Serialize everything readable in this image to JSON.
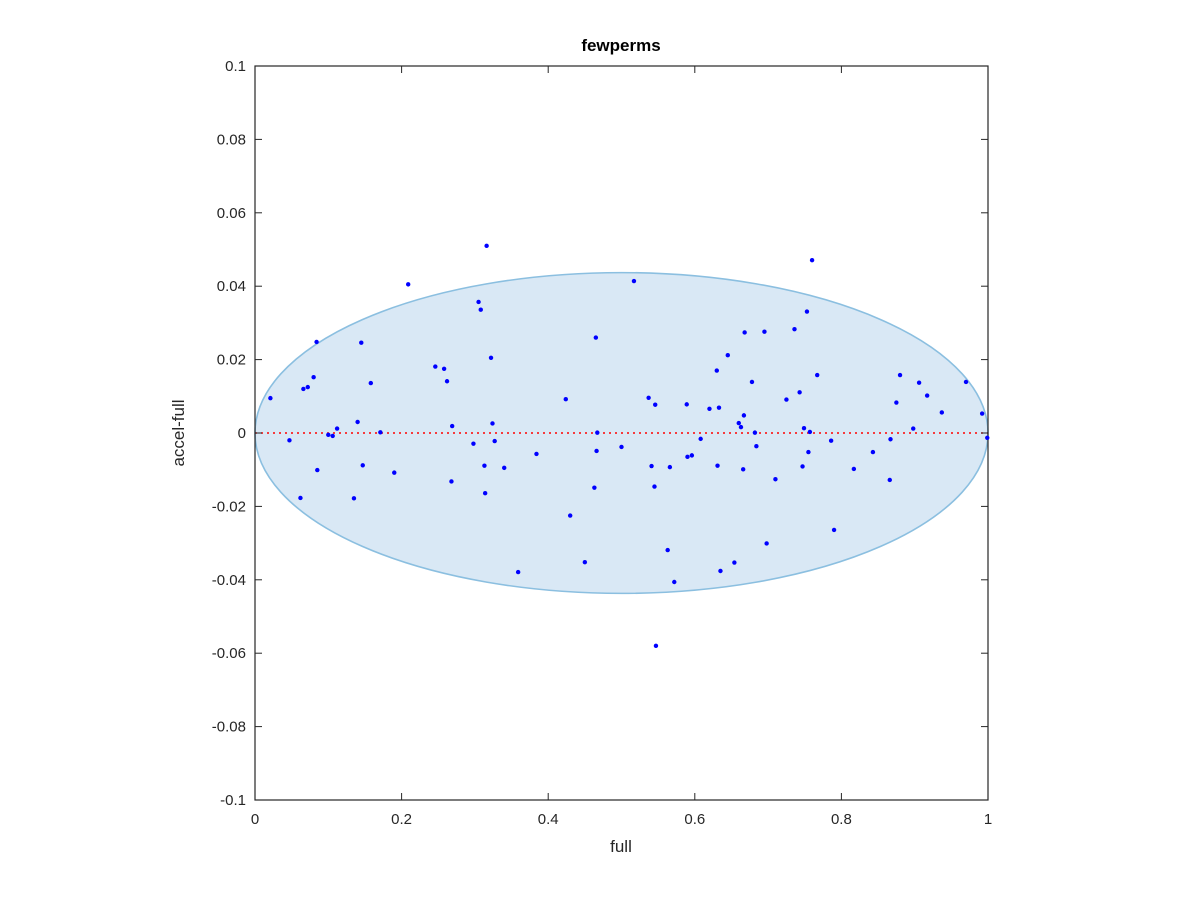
{
  "chart_data": {
    "type": "scatter",
    "title": "fewperms",
    "xlabel": "full",
    "ylabel": "accel-full",
    "xlim": [
      0,
      1
    ],
    "ylim": [
      -0.1,
      0.1
    ],
    "xticks": [
      0,
      0.2,
      0.4,
      0.6,
      0.8,
      1
    ],
    "xtick_labels": [
      "0",
      "0.2",
      "0.4",
      "0.6",
      "0.8",
      "1"
    ],
    "yticks": [
      -0.1,
      -0.08,
      -0.06,
      -0.04,
      -0.02,
      0,
      0.02,
      0.04,
      0.06,
      0.08,
      0.1
    ],
    "ytick_labels": [
      "-0.1",
      "-0.08",
      "-0.06",
      "-0.04",
      "-0.02",
      "0",
      "0.02",
      "0.04",
      "0.06",
      "0.08",
      "0.1"
    ],
    "grid": false,
    "reference_line": {
      "y": 0,
      "style": "dotted",
      "color": "#ff0000"
    },
    "ellipse": {
      "center_x": 0.5,
      "center_y": 0,
      "radius_x": 0.5,
      "radius_y": 0.0437,
      "fill": "#d9e8f5",
      "stroke": "#8bbfe0"
    },
    "point_color": "#0000ff",
    "points": [
      [
        0.021,
        0.0095
      ],
      [
        0.047,
        -0.002
      ],
      [
        0.062,
        -0.0177
      ],
      [
        0.066,
        0.012
      ],
      [
        0.072,
        0.0125
      ],
      [
        0.08,
        0.0152
      ],
      [
        0.084,
        0.0248
      ],
      [
        0.085,
        -0.0101
      ],
      [
        0.1,
        -0.0005
      ],
      [
        0.106,
        -0.0008
      ],
      [
        0.112,
        0.0012
      ],
      [
        0.135,
        -0.0178
      ],
      [
        0.14,
        0.003
      ],
      [
        0.145,
        0.0246
      ],
      [
        0.147,
        -0.0088
      ],
      [
        0.158,
        0.0136
      ],
      [
        0.171,
        0.0002
      ],
      [
        0.19,
        -0.0108
      ],
      [
        0.209,
        0.0405
      ],
      [
        0.246,
        0.0181
      ],
      [
        0.258,
        0.0175
      ],
      [
        0.262,
        0.0141
      ],
      [
        0.268,
        -0.0132
      ],
      [
        0.269,
        0.0019
      ],
      [
        0.298,
        -0.0029
      ],
      [
        0.305,
        0.0357
      ],
      [
        0.308,
        0.0336
      ],
      [
        0.313,
        -0.0089
      ],
      [
        0.314,
        -0.0164
      ],
      [
        0.316,
        0.051
      ],
      [
        0.322,
        0.0205
      ],
      [
        0.324,
        0.0026
      ],
      [
        0.327,
        -0.0022
      ],
      [
        0.34,
        -0.0095
      ],
      [
        0.359,
        -0.0379
      ],
      [
        0.384,
        -0.0057
      ],
      [
        0.424,
        0.0092
      ],
      [
        0.43,
        -0.0225
      ],
      [
        0.45,
        -0.0352
      ],
      [
        0.463,
        -0.0149
      ],
      [
        0.465,
        0.026
      ],
      [
        0.466,
        -0.0049
      ],
      [
        0.467,
        0.0001
      ],
      [
        0.5,
        -0.0038
      ],
      [
        0.517,
        0.0414
      ],
      [
        0.537,
        0.0096
      ],
      [
        0.541,
        -0.009
      ],
      [
        0.545,
        -0.0146
      ],
      [
        0.546,
        0.0077
      ],
      [
        0.547,
        -0.058
      ],
      [
        0.563,
        -0.0319
      ],
      [
        0.566,
        -0.0093
      ],
      [
        0.572,
        -0.0406
      ],
      [
        0.589,
        0.0078
      ],
      [
        0.59,
        -0.0065
      ],
      [
        0.596,
        -0.0061
      ],
      [
        0.608,
        -0.0016
      ],
      [
        0.62,
        0.0066
      ],
      [
        0.631,
        -0.0089
      ],
      [
        0.63,
        0.017
      ],
      [
        0.633,
        0.0069
      ],
      [
        0.635,
        -0.0376
      ],
      [
        0.645,
        0.0212
      ],
      [
        0.654,
        -0.0353
      ],
      [
        0.66,
        0.0027
      ],
      [
        0.663,
        0.0016
      ],
      [
        0.666,
        -0.0099
      ],
      [
        0.667,
        0.0048
      ],
      [
        0.668,
        0.0274
      ],
      [
        0.678,
        0.0139
      ],
      [
        0.682,
        0.0001
      ],
      [
        0.684,
        -0.0036
      ],
      [
        0.695,
        0.0276
      ],
      [
        0.698,
        -0.0301
      ],
      [
        0.71,
        -0.0126
      ],
      [
        0.725,
        0.0091
      ],
      [
        0.736,
        0.0283
      ],
      [
        0.743,
        0.0111
      ],
      [
        0.747,
        -0.0091
      ],
      [
        0.749,
        0.0013
      ],
      [
        0.753,
        0.0331
      ],
      [
        0.755,
        -0.0052
      ],
      [
        0.757,
        0.0003
      ],
      [
        0.76,
        0.0471
      ],
      [
        0.767,
        0.0158
      ],
      [
        0.786,
        -0.0021
      ],
      [
        0.79,
        -0.0264
      ],
      [
        0.817,
        -0.0098
      ],
      [
        0.843,
        -0.0052
      ],
      [
        0.866,
        -0.0128
      ],
      [
        0.867,
        -0.0017
      ],
      [
        0.875,
        0.0083
      ],
      [
        0.88,
        0.0158
      ],
      [
        0.898,
        0.0012
      ],
      [
        0.906,
        0.0137
      ],
      [
        0.917,
        0.0102
      ],
      [
        0.937,
        0.0056
      ],
      [
        0.97,
        0.0139
      ],
      [
        0.992,
        0.0053
      ],
      [
        0.999,
        -0.0013
      ]
    ]
  }
}
